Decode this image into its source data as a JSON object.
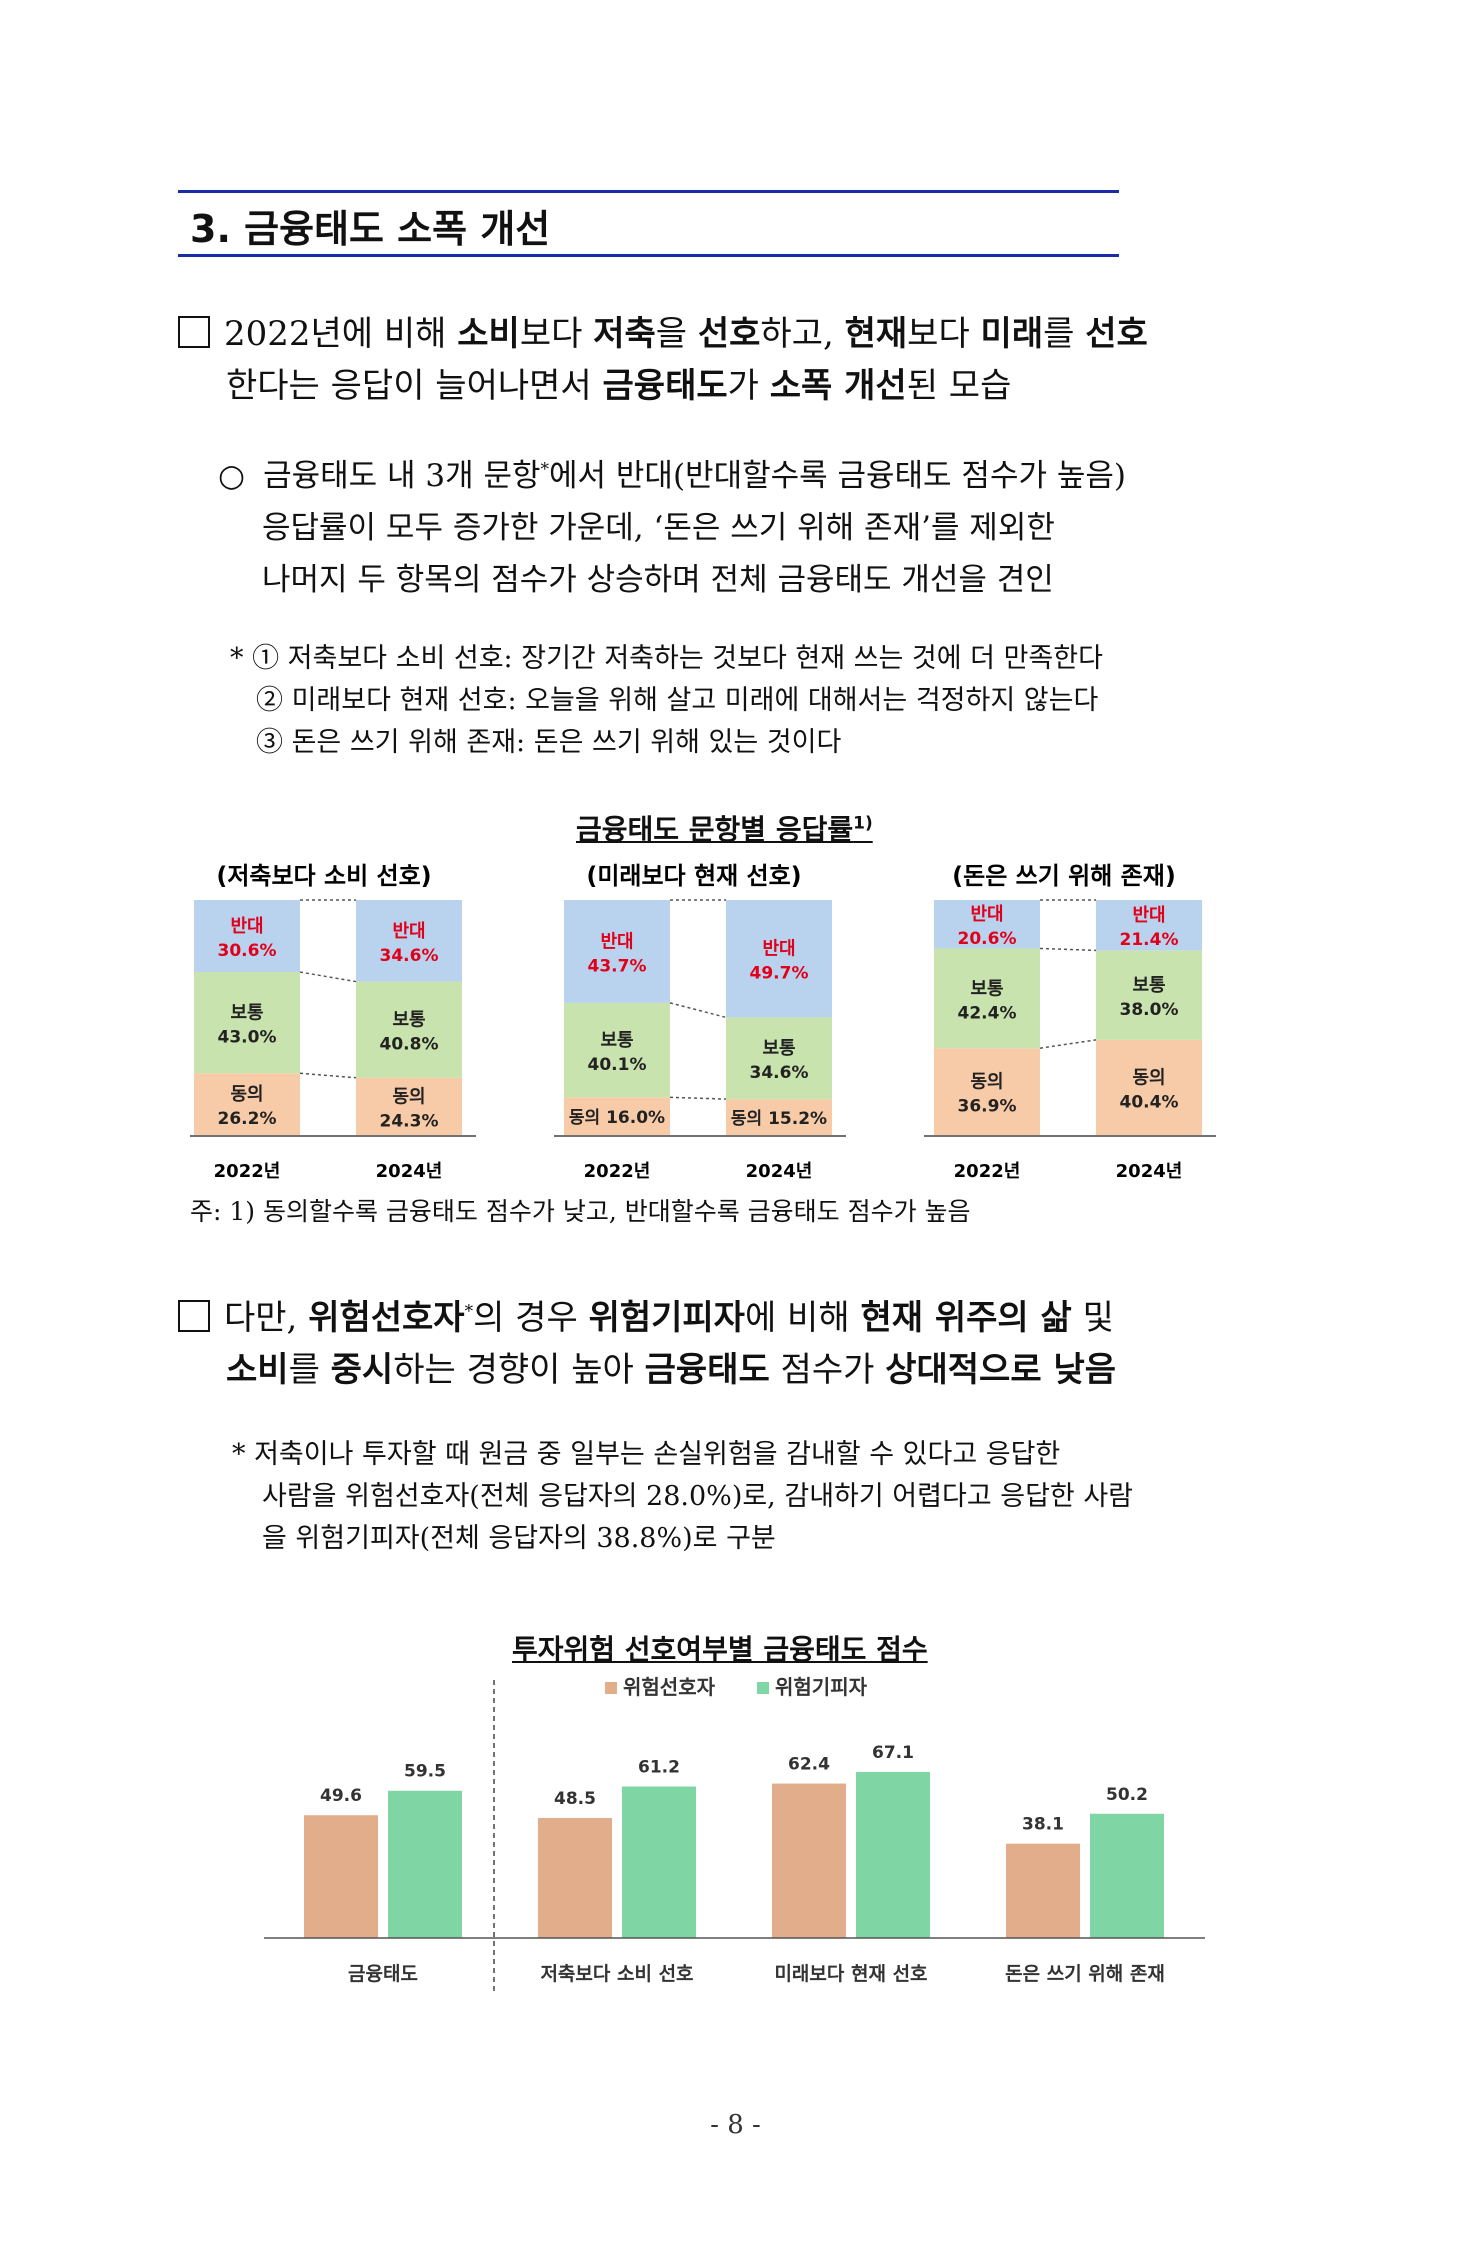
{
  "section": {
    "title": "3. 금융태도 소폭 개선"
  },
  "bullet1": {
    "line1": {
      "pre": "2022년에 비해 ",
      "b1": "소비",
      "t1": "보다 ",
      "b2": "저축",
      "t2": "을 ",
      "b3": "선호",
      "t3": "하고, ",
      "b4": "현재",
      "t4": "보다 ",
      "b5": "미래",
      "t5": "를 ",
      "b6": "선호"
    },
    "line2": {
      "pre": "한다는 응답이 늘어나면서 ",
      "b1": "금융태도",
      "t1": "가 ",
      "b2": "소폭 개선",
      "t2": "된 모습"
    }
  },
  "sub1": {
    "marker": "○",
    "line1_pre": "금융태도 내 3개 문항",
    "line1_star": "*",
    "line1_post": "에서 반대(반대할수록 금융태도 점수가 높음)",
    "line2": "응답률이 모두 증가한 가운데, ‘돈은 쓰기 위해 존재’를 제외한",
    "line3": "나머지 두 항목의 점수가 상승하며 전체 금융태도 개선을 견인"
  },
  "notes1": [
    "* ① 저축보다 소비 선호: 장기간 저축하는 것보다 현재 쓰는 것에 더 만족한다",
    "② 미래보다 현재 선호: 오늘을 위해 살고 미래에 대해서는 걱정하지 않는다",
    "③ 돈은 쓰기 위해 존재: 돈은 쓰기 위해 있는 것이다"
  ],
  "chart1": {
    "title": "금융태도 문항별 응답률",
    "title_sup": "1)",
    "footnote": "주: 1) 동의할수록 금융태도 점수가 낮고, 반대할수록 금융태도 점수가 높음",
    "colors": {
      "oppose": "#b9d3ee",
      "neutral": "#c8e3ad",
      "agree": "#f7cba8",
      "red_label": "#e0001a"
    }
  },
  "chart_data": [
    {
      "type": "bar",
      "stacked": true,
      "title": "(저축보다 소비 선호)",
      "categories": [
        "2022년",
        "2024년"
      ],
      "series": [
        {
          "name": "동의",
          "values": [
            26.2,
            24.3
          ]
        },
        {
          "name": "보통",
          "values": [
            43.0,
            40.8
          ]
        },
        {
          "name": "반대",
          "values": [
            30.6,
            34.6
          ]
        }
      ],
      "labels": {
        "동의": [
          "26.2%",
          "24.3%"
        ],
        "보통": [
          "43.0%",
          "40.8%"
        ],
        "반대": [
          "30.6%",
          "34.6%"
        ]
      }
    },
    {
      "type": "bar",
      "stacked": true,
      "title": "(미래보다 현재 선호)",
      "categories": [
        "2022년",
        "2024년"
      ],
      "series": [
        {
          "name": "동의",
          "values": [
            16.0,
            15.2
          ]
        },
        {
          "name": "보통",
          "values": [
            40.1,
            34.6
          ]
        },
        {
          "name": "반대",
          "values": [
            43.7,
            49.7
          ]
        }
      ],
      "labels": {
        "동의": [
          "16.0%",
          "15.2%"
        ],
        "보통": [
          "40.1%",
          "34.6%"
        ],
        "반대": [
          "43.7%",
          "49.7%"
        ]
      }
    },
    {
      "type": "bar",
      "stacked": true,
      "title": "(돈은 쓰기 위해 존재)",
      "categories": [
        "2022년",
        "2024년"
      ],
      "series": [
        {
          "name": "동의",
          "values": [
            36.9,
            40.4
          ]
        },
        {
          "name": "보통",
          "values": [
            42.4,
            38.0
          ]
        },
        {
          "name": "반대",
          "values": [
            20.6,
            21.4
          ]
        }
      ],
      "labels": {
        "동의": [
          "36.9%",
          "40.4%"
        ],
        "보통": [
          "42.4%",
          "38.0%"
        ],
        "반대": [
          "20.6%",
          "21.4%"
        ]
      }
    },
    {
      "type": "bar",
      "title": "투자위험 선호여부별 금융태도 점수",
      "categories": [
        "금융태도",
        "저축보다 소비 선호",
        "미래보다 현재 선호",
        "돈은 쓰기 위해 존재"
      ],
      "series": [
        {
          "name": "위험선호자",
          "values": [
            49.6,
            48.5,
            62.4,
            38.1
          ],
          "color": "#e2ad8a"
        },
        {
          "name": "위험기피자",
          "values": [
            59.5,
            61.2,
            67.1,
            50.2
          ],
          "color": "#7fd5a4"
        }
      ],
      "ylim": [
        0,
        80
      ],
      "legend": "top"
    }
  ],
  "bullet2": {
    "line1": {
      "pre": "다만, ",
      "b1": "위험선호자",
      "star": "*",
      "t1": "의 경우 ",
      "b2": "위험기피자",
      "t2": "에 비해 ",
      "b3": "현재 위주의 삶",
      "t3": " 및"
    },
    "line2": {
      "b1": "소비",
      "t1": "를 ",
      "b2": "중시",
      "t2": "하는 경향이 높아 ",
      "b3": "금융태도",
      "t3": " 점수가 ",
      "b4": "상대적으로 낮음"
    }
  },
  "notes2": [
    "* 저축이나 투자할 때 원금 중 일부는 손실위험을 감내할 수 있다고 응답한",
    "사람을 위험선호자(전체 응답자의 28.0%)로, 감내하기 어렵다고 응답한 사람",
    "을 위험기피자(전체 응답자의 38.8%)로 구분"
  ],
  "page": {
    "number": "- 8 -"
  }
}
